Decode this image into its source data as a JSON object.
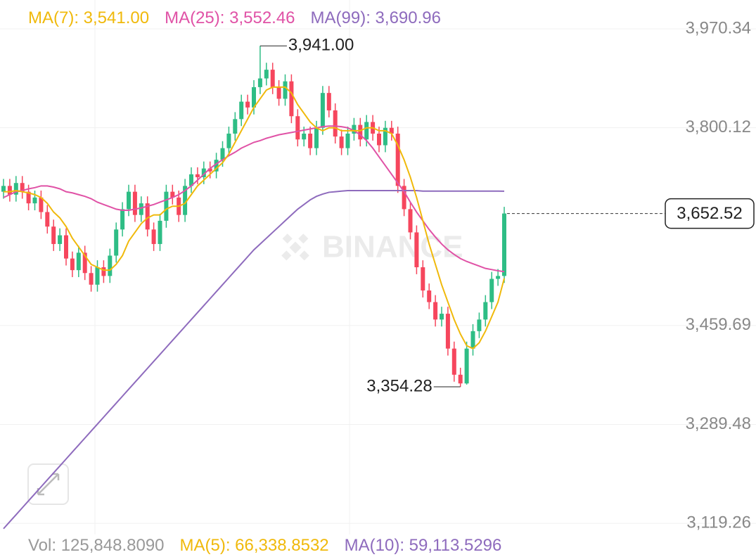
{
  "chart_data": {
    "type": "candlestick",
    "watermark": "BINANCE",
    "open": [
      3690,
      3700,
      3685,
      3705,
      3690,
      3670,
      3680,
      3655,
      3630,
      3600,
      3615,
      3575,
      3555,
      3585,
      3550,
      3530,
      3560,
      3545,
      3580,
      3625,
      3660,
      3690,
      3650,
      3670,
      3625,
      3600,
      3640,
      3690,
      3680,
      3650,
      3700,
      3720,
      3715,
      3730,
      3725,
      3745,
      3765,
      3790,
      3815,
      3845,
      3835,
      3870,
      3885,
      3900,
      3870,
      3850,
      3880,
      3820,
      3780,
      3790,
      3765,
      3800,
      3860,
      3830,
      3785,
      3765,
      3790,
      3805,
      3780,
      3810,
      3790,
      3770,
      3800,
      3790,
      3700,
      3660,
      3620,
      3560,
      3520,
      3500,
      3470,
      3480,
      3420,
      3375,
      3360,
      3420,
      3450,
      3470,
      3500,
      3540,
      3545
    ],
    "high": [
      3712,
      3712,
      3717,
      3717,
      3702,
      3692,
      3692,
      3667,
      3642,
      3627,
      3627,
      3587,
      3597,
      3597,
      3562,
      3572,
      3572,
      3592,
      3637,
      3672,
      3702,
      3702,
      3682,
      3682,
      3637,
      3652,
      3702,
      3702,
      3692,
      3712,
      3732,
      3732,
      3742,
      3742,
      3757,
      3777,
      3802,
      3827,
      3857,
      3857,
      3882,
      3941,
      3912,
      3912,
      3882,
      3892,
      3892,
      3832,
      3802,
      3802,
      3812,
      3872,
      3872,
      3842,
      3797,
      3802,
      3817,
      3817,
      3822,
      3822,
      3802,
      3812,
      3812,
      3802,
      3712,
      3672,
      3632,
      3572,
      3532,
      3512,
      3492,
      3492,
      3432,
      3387,
      3432,
      3462,
      3482,
      3512,
      3552,
      3557,
      3664
    ],
    "low": [
      3678,
      3673,
      3673,
      3678,
      3658,
      3658,
      3643,
      3618,
      3588,
      3588,
      3563,
      3543,
      3543,
      3538,
      3518,
      3518,
      3533,
      3533,
      3568,
      3613,
      3648,
      3638,
      3638,
      3613,
      3588,
      3588,
      3628,
      3668,
      3638,
      3638,
      3688,
      3703,
      3703,
      3713,
      3713,
      3733,
      3753,
      3778,
      3803,
      3823,
      3823,
      3858,
      3873,
      3858,
      3838,
      3838,
      3808,
      3768,
      3768,
      3753,
      3753,
      3788,
      3818,
      3773,
      3753,
      3753,
      3778,
      3768,
      3768,
      3778,
      3758,
      3758,
      3778,
      3688,
      3648,
      3608,
      3548,
      3508,
      3488,
      3458,
      3458,
      3408,
      3363,
      3354.28,
      3358,
      3408,
      3438,
      3458,
      3488,
      3528,
      3533
    ],
    "close": [
      3700,
      3685,
      3705,
      3690,
      3670,
      3680,
      3655,
      3630,
      3600,
      3615,
      3575,
      3555,
      3585,
      3550,
      3530,
      3560,
      3545,
      3580,
      3625,
      3660,
      3690,
      3650,
      3670,
      3625,
      3600,
      3640,
      3690,
      3680,
      3650,
      3700,
      3720,
      3715,
      3730,
      3725,
      3745,
      3765,
      3790,
      3815,
      3845,
      3835,
      3870,
      3885,
      3900,
      3870,
      3850,
      3880,
      3820,
      3780,
      3790,
      3765,
      3800,
      3860,
      3830,
      3785,
      3765,
      3790,
      3805,
      3780,
      3810,
      3790,
      3770,
      3800,
      3790,
      3700,
      3660,
      3620,
      3560,
      3520,
      3500,
      3470,
      3480,
      3420,
      3375,
      3360,
      3420,
      3450,
      3470,
      3500,
      3540,
      3545,
      3652.52
    ],
    "up_color": "#2ebd85",
    "down_color": "#f6465d",
    "series": [
      {
        "name": "MA(7): 3,541.00",
        "color": "#f0b90b",
        "values": [
          3690,
          3690,
          3692,
          3690,
          3688,
          3685,
          3680,
          3670,
          3655,
          3645,
          3630,
          3610,
          3595,
          3580,
          3565,
          3560,
          3555,
          3555,
          3565,
          3580,
          3605,
          3620,
          3635,
          3645,
          3650,
          3650,
          3660,
          3665,
          3665,
          3670,
          3685,
          3700,
          3710,
          3720,
          3730,
          3740,
          3755,
          3775,
          3795,
          3815,
          3835,
          3850,
          3865,
          3870,
          3870,
          3870,
          3860,
          3840,
          3825,
          3810,
          3800,
          3795,
          3800,
          3800,
          3795,
          3795,
          3795,
          3795,
          3800,
          3800,
          3795,
          3795,
          3790,
          3770,
          3745,
          3715,
          3680,
          3640,
          3600,
          3565,
          3530,
          3500,
          3470,
          3445,
          3425,
          3420,
          3430,
          3450,
          3475,
          3500,
          3541
        ]
      },
      {
        "name": "MA(25): 3,552.46",
        "color": "#e052a6",
        "values": [
          3680,
          3685,
          3690,
          3692,
          3695,
          3697,
          3700,
          3700,
          3698,
          3695,
          3690,
          3688,
          3685,
          3682,
          3678,
          3672,
          3668,
          3664,
          3660,
          3658,
          3658,
          3660,
          3662,
          3665,
          3668,
          3672,
          3676,
          3680,
          3685,
          3692,
          3700,
          3710,
          3720,
          3730,
          3738,
          3745,
          3752,
          3758,
          3765,
          3770,
          3775,
          3778,
          3782,
          3785,
          3788,
          3790,
          3792,
          3794,
          3796,
          3798,
          3800,
          3802,
          3803,
          3803,
          3802,
          3800,
          3795,
          3788,
          3778,
          3765,
          3750,
          3735,
          3720,
          3705,
          3690,
          3672,
          3655,
          3640,
          3625,
          3612,
          3600,
          3590,
          3582,
          3575,
          3570,
          3566,
          3562,
          3558,
          3556,
          3554,
          3552.46
        ]
      },
      {
        "name": "MA(99): 3,690.96",
        "color": "#8e6bbd",
        "values": [
          3110,
          3122,
          3134,
          3146,
          3158,
          3170,
          3182,
          3194,
          3206,
          3218,
          3230,
          3242,
          3254,
          3266,
          3278,
          3290,
          3302,
          3314,
          3326,
          3338,
          3350,
          3362,
          3374,
          3386,
          3398,
          3410,
          3422,
          3434,
          3446,
          3458,
          3470,
          3482,
          3494,
          3506,
          3518,
          3530,
          3542,
          3554,
          3566,
          3578,
          3590,
          3600,
          3610,
          3620,
          3630,
          3640,
          3650,
          3660,
          3668,
          3676,
          3682,
          3686,
          3689,
          3690,
          3691,
          3692,
          3692,
          3692,
          3692,
          3692,
          3692,
          3692,
          3692,
          3692,
          3692,
          3692,
          3692,
          3691,
          3691,
          3691,
          3691,
          3691,
          3691,
          3691,
          3691,
          3691,
          3691,
          3691,
          3691,
          3691,
          3690.96
        ]
      }
    ],
    "high_label": {
      "value": 3941,
      "label": "3,941.00"
    },
    "low_label": {
      "value": 3354.28,
      "label": "3,354.28"
    },
    "last_price": {
      "value": 3652.52,
      "label": "3,652.52"
    },
    "volume_legend": [
      {
        "text": "Vol: 125,848.8090",
        "color": "#999999"
      },
      {
        "text": "MA(5): 66,338.8532",
        "color": "#f0b90b"
      },
      {
        "text": "MA(10): 59,113.5296",
        "color": "#8e6bbd"
      }
    ],
    "ylim": [
      3100,
      4020
    ],
    "yticks": [
      {
        "value": 3119.26,
        "label": "3,119.26"
      },
      {
        "value": 3289.48,
        "label": "3,289.48"
      },
      {
        "value": 3459.69,
        "label": "3,459.69"
      },
      {
        "value": 3800.12,
        "label": "3,800.12"
      },
      {
        "value": 3970.34,
        "label": "3,970.34"
      }
    ],
    "grid": true
  }
}
